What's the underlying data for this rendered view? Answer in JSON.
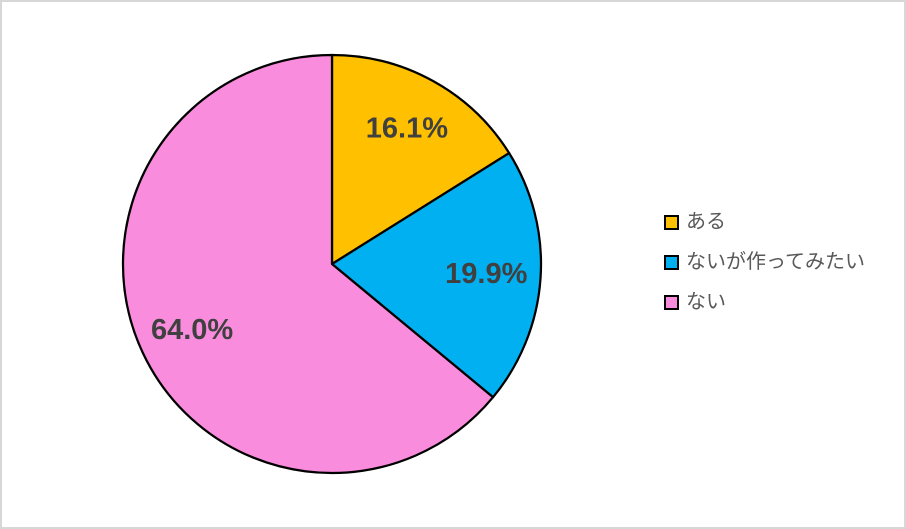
{
  "page": {
    "background_color": "#ffffff",
    "frame_border_color": "#d7d7d7"
  },
  "chart_data": {
    "type": "pie",
    "title": "",
    "categories": [
      "ある",
      "ないが作ってみたい",
      "ない"
    ],
    "values": [
      16.1,
      19.9,
      64.0
    ],
    "value_labels": [
      "16.1%",
      "19.9%",
      "64.0%"
    ],
    "colors": [
      "#FFC000",
      "#00B0F0",
      "#FA8CDE"
    ],
    "start_angle_deg": 0,
    "direction": "clockwise",
    "slice_border_color": "#000000",
    "slice_border_width": 2.25,
    "label_color": "#404040",
    "legend": {
      "position": "right",
      "text_color": "#595959",
      "marker_border_color": "#000000",
      "items": [
        {
          "label": "ある",
          "color": "#FFC000"
        },
        {
          "label": "ないが作ってみたい",
          "color": "#00B0F0"
        },
        {
          "label": "ない",
          "color": "#FA8CDE"
        }
      ]
    }
  }
}
